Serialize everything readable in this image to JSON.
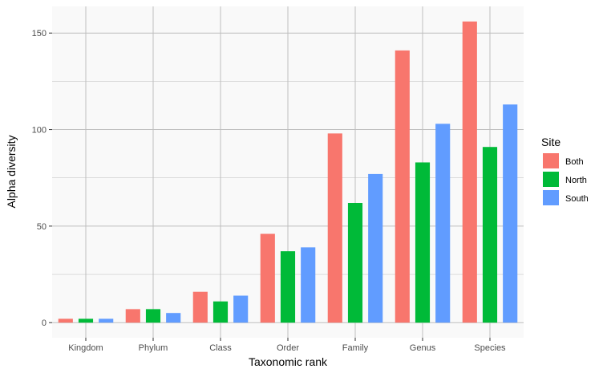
{
  "chart_data": {
    "type": "bar",
    "title": "",
    "xlabel": "Taxonomic rank",
    "ylabel": "Alpha diversity",
    "categories": [
      "Kingdom",
      "Phylum",
      "Class",
      "Order",
      "Family",
      "Genus",
      "Species"
    ],
    "series": [
      {
        "name": "Both",
        "color": "#F8766D",
        "values": [
          2,
          7,
          16,
          46,
          98,
          141,
          156
        ]
      },
      {
        "name": "North",
        "color": "#00BA38",
        "values": [
          2,
          7,
          11,
          37,
          62,
          83,
          91
        ]
      },
      {
        "name": "South",
        "color": "#619CFF",
        "values": [
          2,
          5,
          14,
          39,
          77,
          103,
          113
        ]
      }
    ],
    "ylim": [
      -7.8,
      163.8
    ],
    "yticks": [
      0,
      50,
      100,
      150
    ],
    "ytick_labels": [
      "0",
      "50",
      "100",
      "150"
    ],
    "grid": true,
    "legend": {
      "title": "Site",
      "position": "right"
    },
    "colors": {
      "panel_background": "#F9F9F9",
      "grid": "#BEBEBE",
      "tick_text": "#4D4D4D"
    }
  }
}
